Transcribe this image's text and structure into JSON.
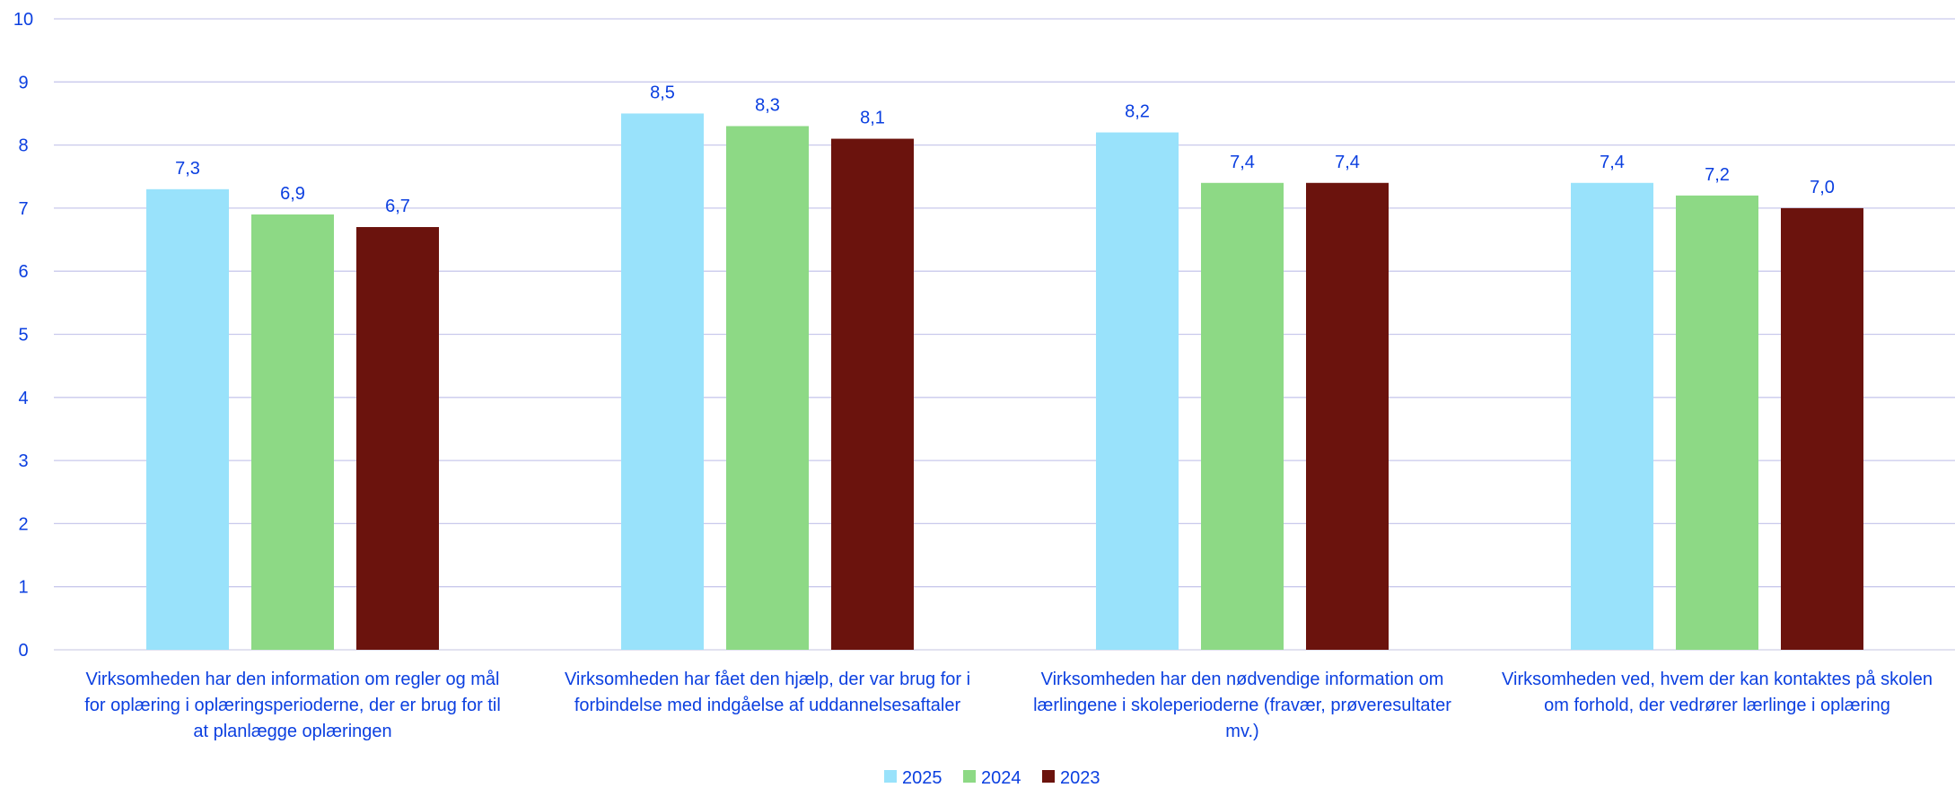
{
  "chart_data": {
    "type": "bar",
    "ylim": [
      0,
      10
    ],
    "yticks": [
      "0",
      "1",
      "2",
      "3",
      "4",
      "5",
      "6",
      "7",
      "8",
      "9",
      "10"
    ],
    "grid": true,
    "legend_position": "bottom",
    "categories": [
      [
        "Virksomheden har den information om regler og mål",
        "for oplæring i oplæringsperioderne, der er brug for til",
        "at planlægge oplæringen"
      ],
      [
        "Virksomheden har fået den hjælp, der var brug for i",
        "forbindelse med indgåelse af uddannelsesaftaler"
      ],
      [
        "Virksomheden har den nødvendige information om",
        "lærlingene i skoleperioderne (fravær, prøveresultater",
        "mv.)"
      ],
      [
        "Virksomheden ved, hvem der kan kontaktes på skolen",
        "om forhold, der vedrører lærlinge i oplæring"
      ]
    ],
    "series": [
      {
        "name": "2025",
        "color": "#99E2FB",
        "values": [
          7.3,
          8.5,
          8.2,
          7.4
        ],
        "labels": [
          "7,3",
          "8,5",
          "8,2",
          "7,4"
        ]
      },
      {
        "name": "2024",
        "color": "#8DD985",
        "values": [
          6.9,
          8.3,
          7.4,
          7.2
        ],
        "labels": [
          "6,9",
          "8,3",
          "7,4",
          "7,2"
        ]
      },
      {
        "name": "2023",
        "color": "#6B130D",
        "values": [
          6.7,
          8.1,
          7.4,
          7.0
        ],
        "labels": [
          "6,7",
          "8,1",
          "7,4",
          "7,0"
        ]
      }
    ],
    "colors": {
      "text": "#0B3FE0",
      "grid": "#C9C9EC",
      "axis": "#D0D0E8"
    }
  }
}
